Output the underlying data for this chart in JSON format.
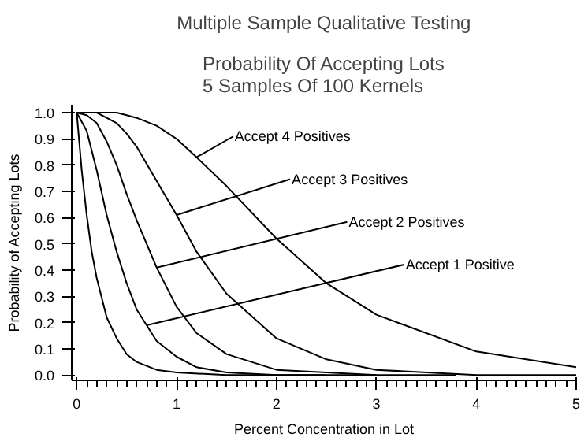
{
  "chart_data": {
    "type": "line",
    "title": "Multiple Sample Qualitative Testing",
    "subtitle": "Probability Of Accepting Lots\n5 Samples Of 100 Kernels",
    "xlabel": "Percent Concentration in Lot",
    "ylabel": "Probability of Accepting Lots",
    "xlim": [
      -0.05,
      5
    ],
    "ylim": [
      -0.02,
      1.03
    ],
    "xticks": [
      0,
      1,
      2,
      3,
      4,
      5
    ],
    "yticks": [
      {
        "value": 0,
        "label": "0.0"
      },
      {
        "value": 0.1,
        "label": "0.1"
      },
      {
        "value": 0.2,
        "label": "0.2"
      },
      {
        "value": 0.3,
        "label": "0.3"
      },
      {
        "value": 0.4,
        "label": "0.4"
      },
      {
        "value": 0.5,
        "label": "0.5"
      },
      {
        "value": 0.6,
        "label": "0.6"
      },
      {
        "value": 0.7,
        "label": "0.7"
      },
      {
        "value": 0.8,
        "label": "0.8"
      },
      {
        "value": 0.9,
        "label": "0.9"
      },
      {
        "value": 1,
        "label": "1.0"
      }
    ],
    "grid": false,
    "marker": "none",
    "line_style": "solid",
    "series": [
      {
        "color": "#000000",
        "x": [
          0,
          0.05,
          0.1,
          0.15,
          0.2,
          0.3,
          0.4,
          0.5,
          0.6,
          0.8,
          1,
          1.5,
          2.5
        ],
        "values": [
          1,
          0.78,
          0.61,
          0.47,
          0.37,
          0.22,
          0.14,
          0.08,
          0.05,
          0.02,
          0.01,
          0,
          0
        ]
      },
      {
        "color": "#000000",
        "x": [
          0,
          0.1,
          0.2,
          0.3,
          0.4,
          0.5,
          0.6,
          0.8,
          1,
          1.2,
          1.5,
          2,
          3
        ],
        "values": [
          1,
          0.93,
          0.78,
          0.61,
          0.47,
          0.35,
          0.25,
          0.13,
          0.07,
          0.03,
          0.01,
          0,
          0
        ]
      },
      {
        "color": "#000000",
        "x": [
          0,
          0.1,
          0.2,
          0.3,
          0.4,
          0.5,
          0.6,
          0.8,
          1,
          1.2,
          1.5,
          2,
          2.5,
          3,
          3.8
        ],
        "values": [
          1,
          0.99,
          0.96,
          0.89,
          0.8,
          0.69,
          0.59,
          0.41,
          0.26,
          0.16,
          0.08,
          0.02,
          0.01,
          0,
          0
        ]
      },
      {
        "color": "#000000",
        "x": [
          0,
          0.2,
          0.3,
          0.4,
          0.5,
          0.6,
          0.8,
          1,
          1.2,
          1.5,
          2,
          2.5,
          3,
          4,
          5
        ],
        "values": [
          1,
          1,
          0.98,
          0.96,
          0.92,
          0.87,
          0.74,
          0.61,
          0.47,
          0.31,
          0.14,
          0.06,
          0.02,
          0,
          0
        ]
      },
      {
        "color": "#000000",
        "x": [
          0,
          0.3,
          0.4,
          0.5,
          0.6,
          0.8,
          1,
          1.2,
          1.5,
          2,
          2.5,
          3,
          4,
          5
        ],
        "values": [
          1,
          1,
          1,
          0.99,
          0.98,
          0.95,
          0.9,
          0.83,
          0.72,
          0.52,
          0.35,
          0.23,
          0.09,
          0.03
        ]
      }
    ],
    "annotations": [
      {
        "text": "Accept 4 Positives",
        "x": 1.2,
        "y": 0.83
      },
      {
        "text": "Accept 3 Positives",
        "x": 1.0,
        "y": 0.61
      },
      {
        "text": "Accept 2 Positives",
        "x": 0.8,
        "y": 0.41
      },
      {
        "text": "Accept 1 Positive",
        "x": 0.7,
        "y": 0.19
      }
    ]
  }
}
